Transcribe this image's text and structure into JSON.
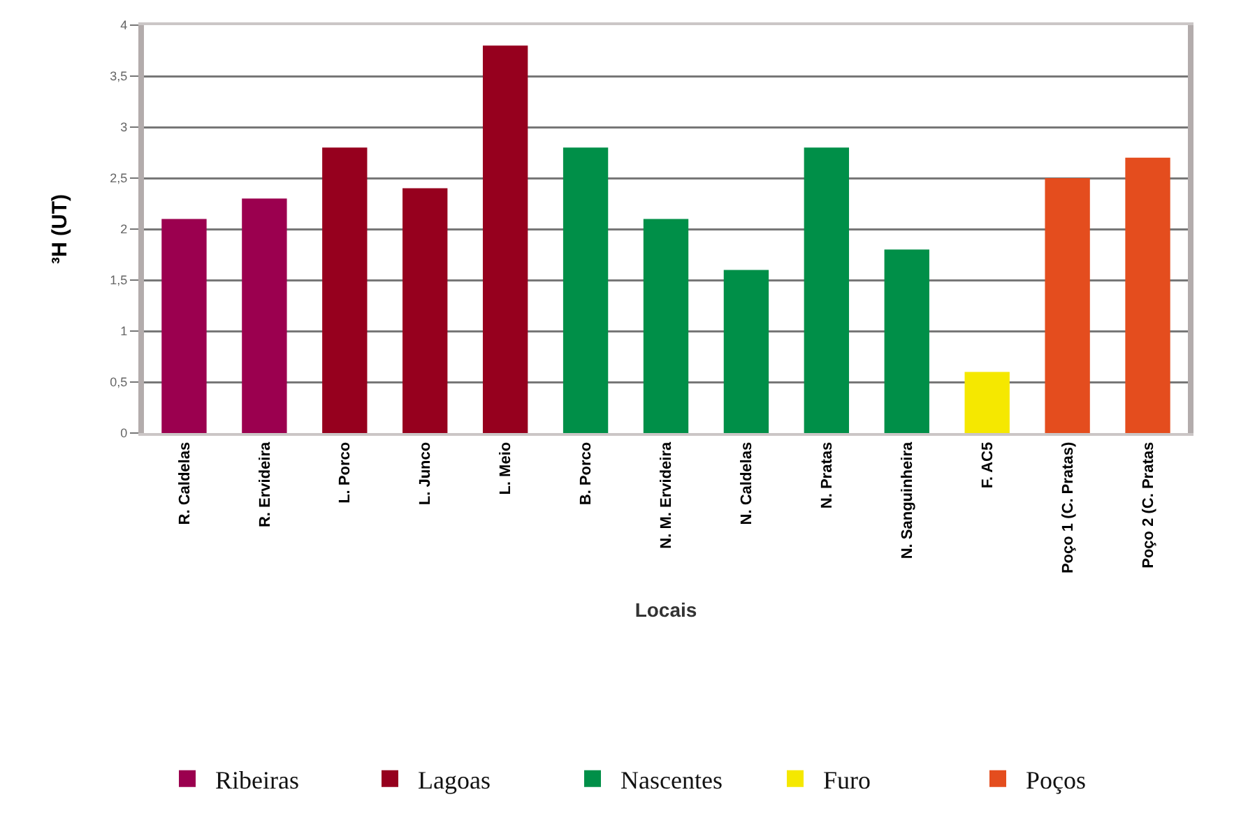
{
  "chart_data": {
    "type": "bar",
    "categories": [
      "R. Caldelas",
      "R. Ervideira",
      "L. Porco",
      "L. Junco",
      "L. Meio",
      "B. Porco",
      "N. M. Ervideira",
      "N. Caldelas",
      "N. Pratas",
      "N. Sanguinheira",
      "F. AC5",
      "Poço 1 (C. Pratas)",
      "Poço 2 (C. Pratas"
    ],
    "series": [
      {
        "name": "Ribeiras",
        "color": "#9b004f",
        "values": [
          2.1,
          2.3,
          null,
          null,
          null,
          null,
          null,
          null,
          null,
          null,
          null,
          null,
          null
        ]
      },
      {
        "name": "Lagoas",
        "color": "#96001e",
        "values": [
          null,
          null,
          2.8,
          2.4,
          3.8,
          null,
          null,
          null,
          null,
          null,
          null,
          null,
          null
        ]
      },
      {
        "name": "Nascentes",
        "color": "#008f48",
        "values": [
          null,
          null,
          null,
          null,
          null,
          2.8,
          2.1,
          1.6,
          2.8,
          1.8,
          null,
          null,
          null
        ]
      },
      {
        "name": "Furo",
        "color": "#f5e800",
        "values": [
          null,
          null,
          null,
          null,
          null,
          null,
          null,
          null,
          null,
          null,
          0.6,
          null,
          null
        ]
      },
      {
        "name": "Poços",
        "color": "#e44d1e",
        "values": [
          null,
          null,
          null,
          null,
          null,
          null,
          null,
          null,
          null,
          null,
          null,
          2.5,
          2.7
        ]
      }
    ],
    "xlabel": "Locais",
    "ylabel": "³H (UT)",
    "ylim": [
      0,
      4
    ],
    "yticks": [
      0,
      {
        "value": 0.5,
        "label": "0,5"
      },
      1,
      {
        "value": 1.5,
        "label": "1,5"
      },
      2,
      {
        "value": 2.5,
        "label": "2,5"
      },
      3,
      {
        "value": 3.5,
        "label": "3,5"
      },
      4
    ],
    "grid": "y",
    "legend": "bottom"
  }
}
